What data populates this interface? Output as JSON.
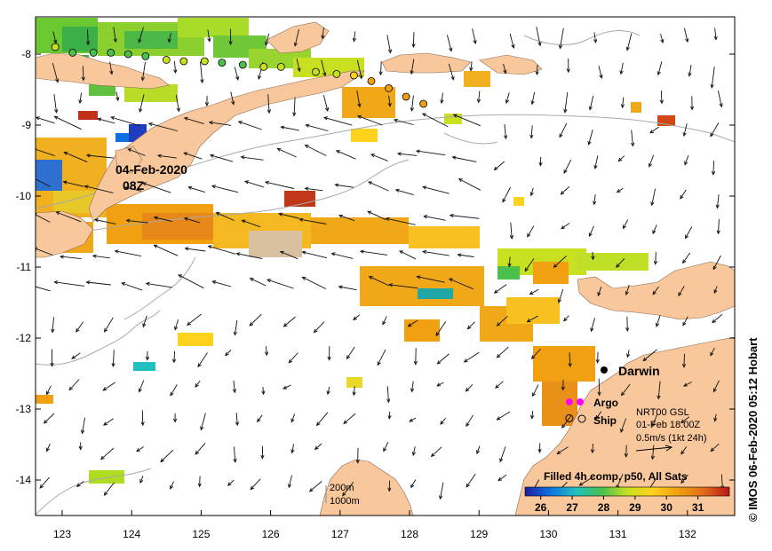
{
  "map": {
    "map_type": "Sea surface temperature with surface current vectors",
    "region_labels": {
      "timestamp_date": "04-Feb-2020",
      "timestamp_time": "08Z",
      "darwin": "Darwin",
      "argo": "Argo",
      "ship": "Ship"
    },
    "axes": {
      "x_ticks": [
        "123",
        "124",
        "125",
        "126",
        "127",
        "128",
        "129",
        "130",
        "131",
        "132"
      ],
      "y_ticks": [
        "-8",
        "-9",
        "-10",
        "-11",
        "-12",
        "-13",
        "-14"
      ]
    },
    "vector_legend": {
      "line1": "NRT00 GSL",
      "line2": "01-Feb 18:00Z",
      "line3": "0.5m/s (1kt 24h)"
    },
    "isobath_legend": {
      "shallow": "200m",
      "deep": "1000m"
    },
    "colorbar": {
      "title": "Filled 4h comp, p50, All Sats",
      "ticks": [
        "26",
        "27",
        "28",
        "29",
        "30",
        "31"
      ],
      "min": 25.5,
      "max": 32
    },
    "copyright": "© IMOS 06-Feb-2020 05:12 Hobart",
    "colors": {
      "land": "#f8c89c",
      "ocean": "#ffffff",
      "contour": "#aaaaaa",
      "argo_marker": "#ff00ff",
      "colorbar_stops": [
        "#1e1ea0",
        "#0f6fe0",
        "#20c0c0",
        "#4cc04c",
        "#c8e020",
        "#ffd21e",
        "#f0a010",
        "#e06818",
        "#b81818"
      ]
    },
    "argo_markers": [
      {
        "lon": 122.9,
        "lat": -7.9,
        "sst": 28.9
      },
      {
        "lon": 123.15,
        "lat": -7.98,
        "sst": 28.0
      },
      {
        "lon": 123.45,
        "lat": -7.98,
        "sst": 28.0
      },
      {
        "lon": 123.7,
        "lat": -7.98,
        "sst": 28.0
      },
      {
        "lon": 123.95,
        "lat": -8.0,
        "sst": 28.0
      },
      {
        "lon": 124.2,
        "lat": -8.03,
        "sst": 28.2
      },
      {
        "lon": 124.5,
        "lat": -8.08,
        "sst": 28.4
      },
      {
        "lon": 124.75,
        "lat": -8.1,
        "sst": 28.4
      },
      {
        "lon": 125.05,
        "lat": -8.1,
        "sst": 28.4
      },
      {
        "lon": 125.3,
        "lat": -8.12,
        "sst": 28.2
      },
      {
        "lon": 125.6,
        "lat": -8.15,
        "sst": 28.2
      },
      {
        "lon": 125.9,
        "lat": -8.18,
        "sst": 28.6
      },
      {
        "lon": 126.15,
        "lat": -8.18,
        "sst": 28.6
      },
      {
        "lon": 126.65,
        "lat": -8.25,
        "sst": 29.1
      },
      {
        "lon": 126.95,
        "lat": -8.28,
        "sst": 29.0
      },
      {
        "lon": 127.2,
        "lat": -8.3,
        "sst": 29.2
      },
      {
        "lon": 127.45,
        "lat": -8.38,
        "sst": 30.5
      },
      {
        "lon": 127.7,
        "lat": -8.48,
        "sst": 30.5
      },
      {
        "lon": 127.95,
        "lat": -8.6,
        "sst": 30.3
      },
      {
        "lon": 128.2,
        "lat": -8.7,
        "sst": 30.2
      },
      {
        "lon": 130.3,
        "lat": -12.9,
        "sst": null
      }
    ],
    "ship_marker": {
      "lon": 130.3,
      "lat": -13.13
    },
    "darwin_marker": {
      "lon": 130.8,
      "lat": -12.45
    }
  }
}
